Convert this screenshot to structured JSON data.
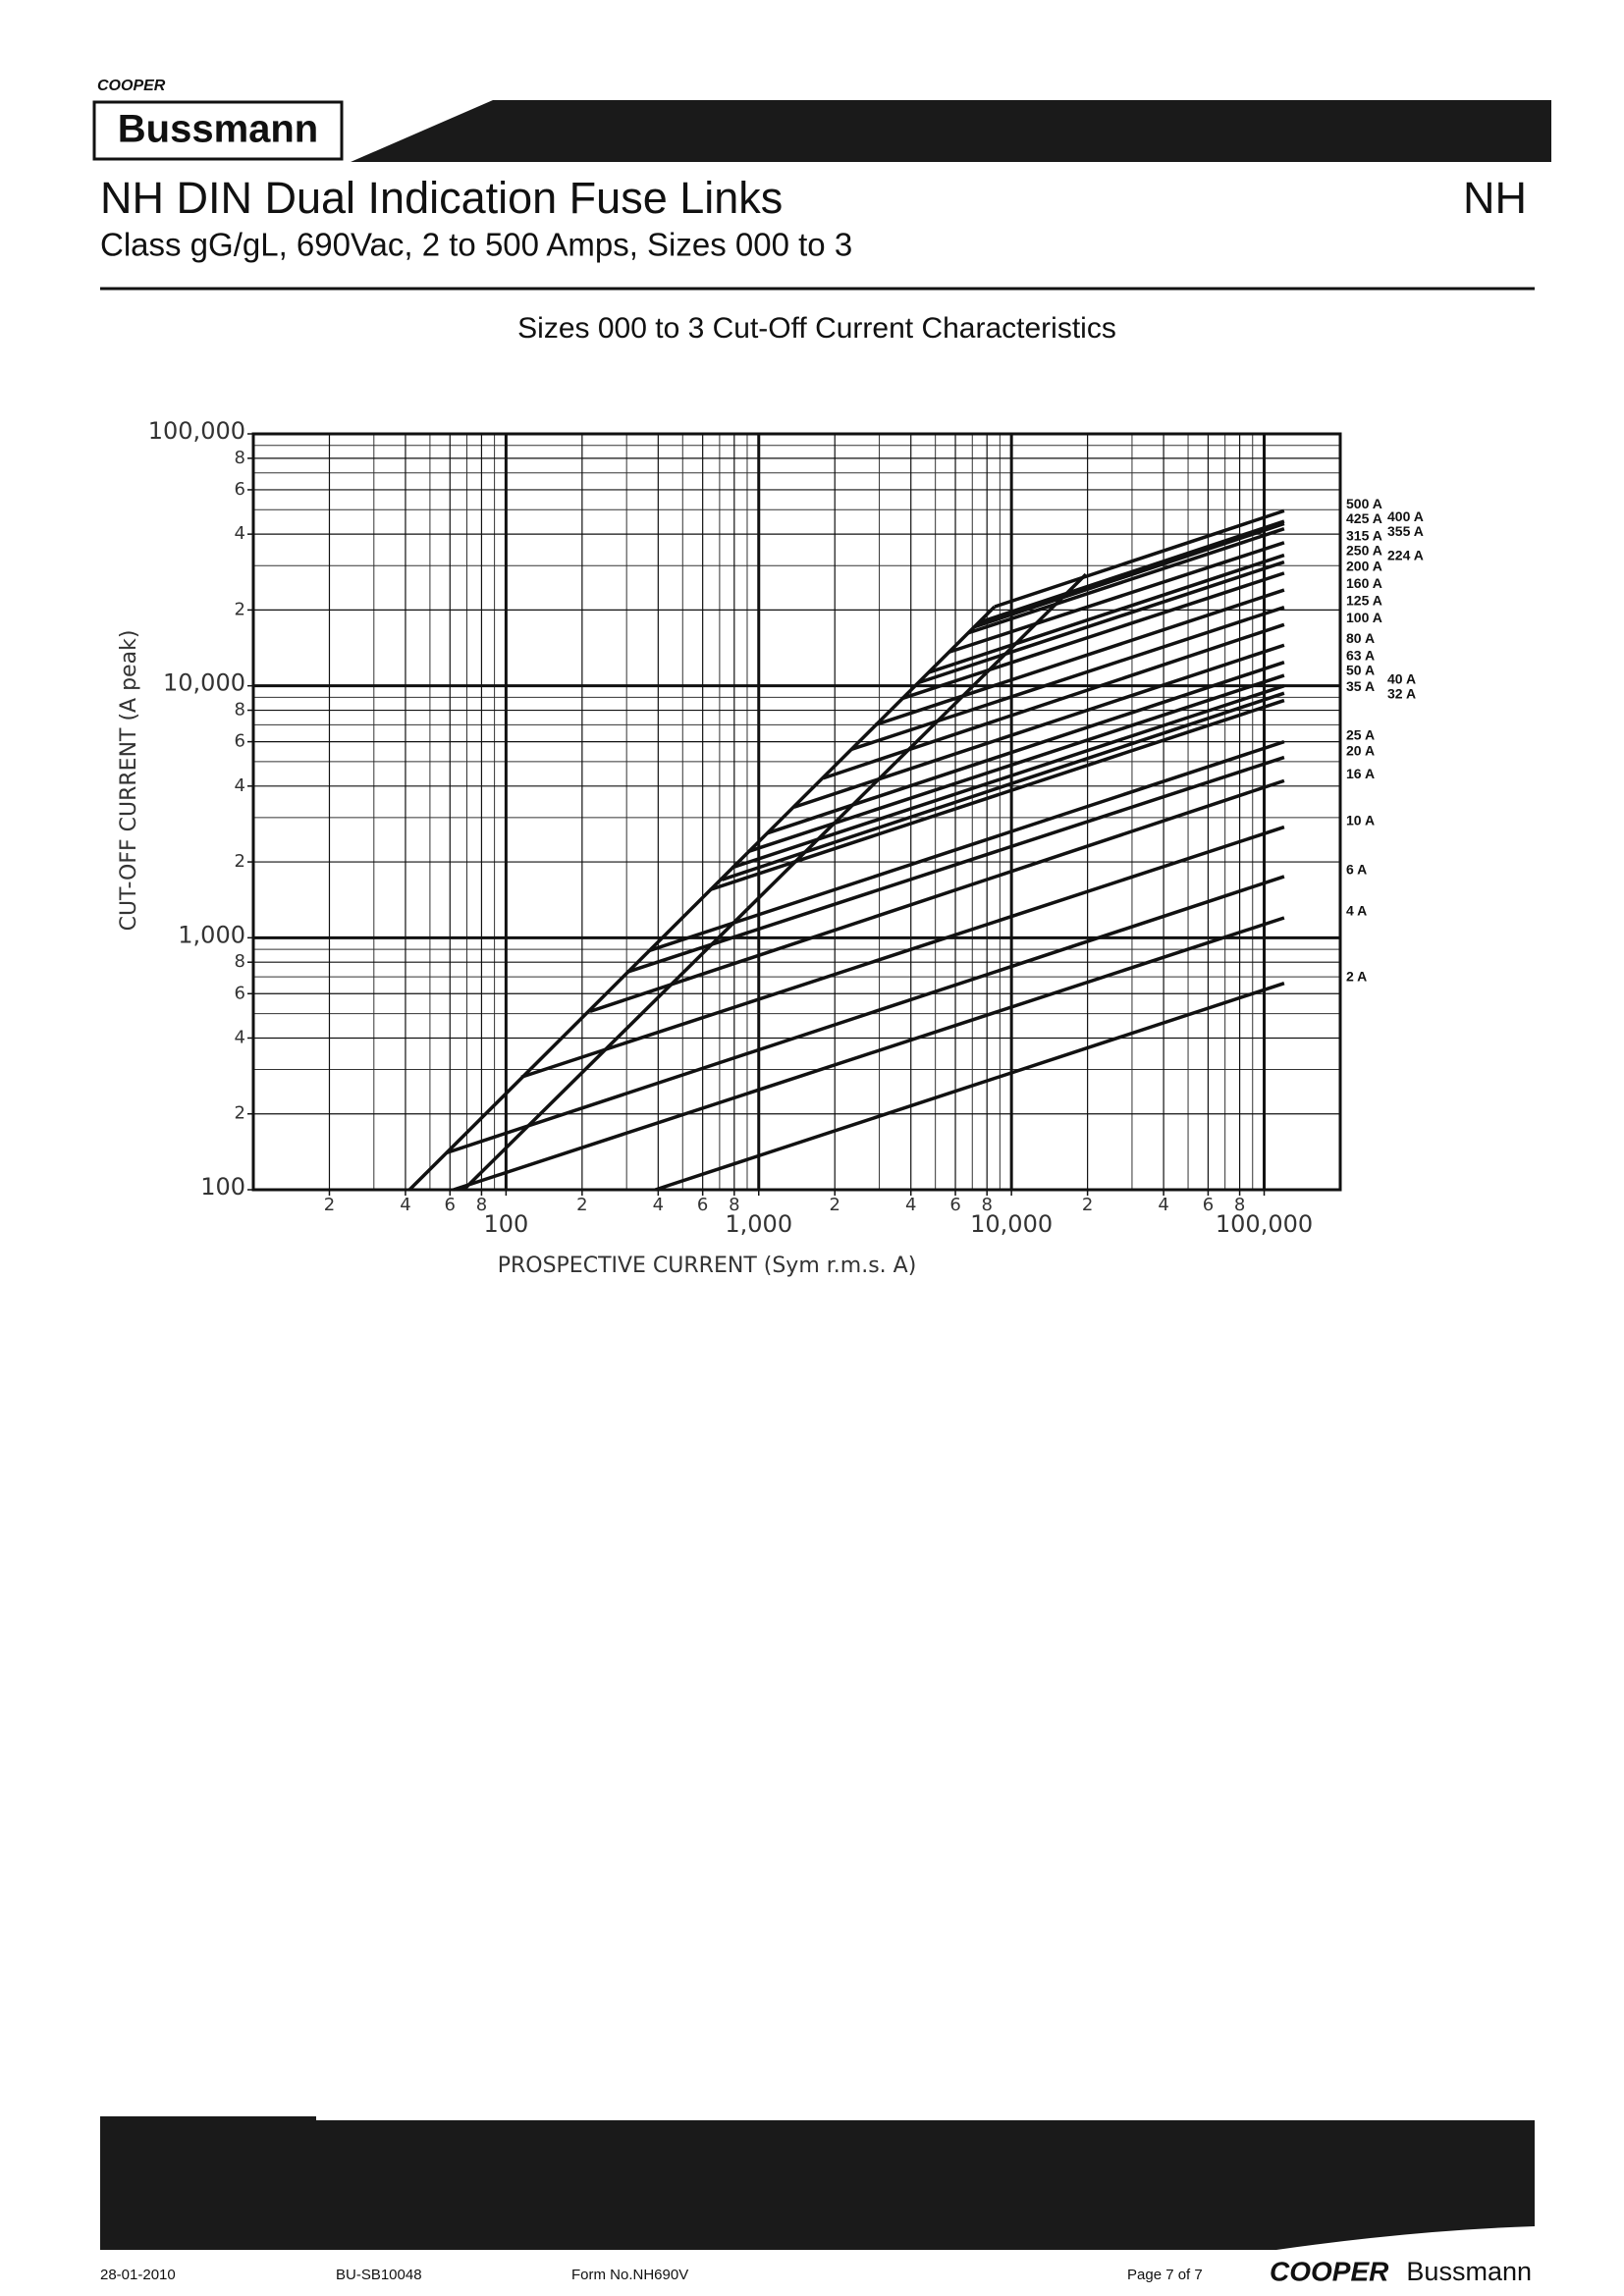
{
  "header": {
    "brand_small": "COOPER",
    "brand": "Bussmann",
    "title": "NH DIN Dual Indication Fuse Links",
    "subtitle": "Class gG/gL, 690Vac, 2 to 500 Amps, Sizes 000 to 3",
    "section": "NH"
  },
  "chart_data": {
    "type": "line",
    "title": "Sizes 000 to 3 Cut-Off Current Characteristics",
    "xlabel": "PROSPECTIVE CURRENT (Sym r.m.s. A)",
    "ylabel": "CUT-OFF CURRENT (A peak)",
    "xscale": "log",
    "yscale": "log",
    "grid": true,
    "color": "#111",
    "xlim": [
      10,
      200000
    ],
    "ylim": [
      100,
      100000
    ],
    "xticks": [
      {
        "value": 20,
        "label": "2"
      },
      {
        "value": 40,
        "label": "4"
      },
      {
        "value": 60,
        "label": "6"
      },
      {
        "value": 80,
        "label": "8"
      },
      100,
      {
        "value": 200,
        "label": "2"
      },
      {
        "value": 400,
        "label": "4"
      },
      {
        "value": 600,
        "label": "6"
      },
      {
        "value": 800,
        "label": "8"
      },
      {
        "value": 1000,
        "label": "1,000"
      },
      {
        "value": 2000,
        "label": "2"
      },
      {
        "value": 4000,
        "label": "4"
      },
      {
        "value": 6000,
        "label": "6"
      },
      {
        "value": 8000,
        "label": "8"
      },
      {
        "value": 10000,
        "label": "10,000"
      },
      {
        "value": 20000,
        "label": "2"
      },
      {
        "value": 40000,
        "label": "4"
      },
      {
        "value": 60000,
        "label": "6"
      },
      {
        "value": 80000,
        "label": "8"
      },
      {
        "value": 100000,
        "label": "100,000"
      }
    ],
    "yticks": [
      100,
      {
        "value": 200,
        "label": "2"
      },
      {
        "value": 400,
        "label": "4"
      },
      {
        "value": 600,
        "label": "6"
      },
      {
        "value": 800,
        "label": "8"
      },
      {
        "value": 1000,
        "label": "1,000"
      },
      {
        "value": 2000,
        "label": "2"
      },
      {
        "value": 4000,
        "label": "4"
      },
      {
        "value": 6000,
        "label": "6"
      },
      {
        "value": 8000,
        "label": "8"
      },
      {
        "value": 10000,
        "label": "10,000"
      },
      {
        "value": 20000,
        "label": "2"
      },
      {
        "value": 40000,
        "label": "4"
      },
      {
        "value": 60000,
        "label": "6"
      },
      {
        "value": 80000,
        "label": "8"
      },
      {
        "value": 100000,
        "label": "100,000"
      }
    ],
    "series": [
      {
        "name": "500 A",
        "x": [
          8570,
          120000
        ],
        "values": [
          20600,
          49500
        ]
      },
      {
        "name": "425 A",
        "x": [
          7390,
          120000
        ],
        "values": [
          17800,
          45000
        ]
      },
      {
        "name": "400 A",
        "x": [
          7100,
          120000
        ],
        "values": [
          17100,
          44000
        ]
      },
      {
        "name": "355 A",
        "x": [
          6730,
          120000
        ],
        "values": [
          16200,
          42000
        ]
      },
      {
        "name": "315 A",
        "x": [
          5650,
          120000
        ],
        "values": [
          13600,
          37000
        ]
      },
      {
        "name": "250 A",
        "x": [
          4700,
          120000
        ],
        "values": [
          11300,
          33000
        ]
      },
      {
        "name": "224 A",
        "x": [
          4300,
          120000
        ],
        "values": [
          10300,
          31000
        ]
      },
      {
        "name": "200 A",
        "x": [
          3680,
          120000
        ],
        "values": [
          8900,
          28000
        ]
      },
      {
        "name": "160 A",
        "x": [
          2890,
          120000
        ],
        "values": [
          7000,
          24000
        ]
      },
      {
        "name": "125 A",
        "x": [
          2330,
          120000
        ],
        "values": [
          5600,
          20500
        ]
      },
      {
        "name": "100 A",
        "x": [
          1800,
          120000
        ],
        "values": [
          4300,
          17500
        ]
      },
      {
        "name": "80 A",
        "x": [
          1380,
          120000
        ],
        "values": [
          3300,
          14500
        ]
      },
      {
        "name": "63 A",
        "x": [
          1080,
          120000
        ],
        "values": [
          2600,
          12400
        ]
      },
      {
        "name": "50 A",
        "x": [
          910,
          120000
        ],
        "values": [
          2200,
          11000
        ]
      },
      {
        "name": "40 A",
        "x": [
          785,
          120000
        ],
        "values": [
          1900,
          10000
        ]
      },
      {
        "name": "35 A",
        "x": [
          715,
          120000
        ],
        "values": [
          1700,
          9350
        ]
      },
      {
        "name": "32 A",
        "x": [
          640,
          120000
        ],
        "values": [
          1550,
          8750
        ]
      },
      {
        "name": "25 A",
        "x": [
          370,
          120000
        ],
        "values": [
          890,
          6000
        ]
      },
      {
        "name": "20 A",
        "x": [
          300,
          120000
        ],
        "values": [
          730,
          5200
        ]
      },
      {
        "name": "16 A",
        "x": [
          215,
          120000
        ],
        "values": [
          510,
          4200
        ]
      },
      {
        "name": "10 A",
        "x": [
          115,
          120000
        ],
        "values": [
          280,
          2750
        ]
      },
      {
        "name": "6 A",
        "x": [
          58,
          120000
        ],
        "values": [
          140,
          1750
        ]
      },
      {
        "name": "4 A",
        "x": [
          62,
          120000
        ],
        "values": [
          100,
          1200
        ]
      },
      {
        "name": "2 A",
        "x": [
          390,
          120000
        ],
        "values": [
          100,
          660
        ]
      },
      {
        "x": [
          41.5,
          8570
        ],
        "values": [
          100,
          20600
        ]
      },
      {
        "x": [
          68,
          19700
        ],
        "values": [
          100,
          27700
        ]
      }
    ]
  },
  "footer": {
    "date": "28-01-2010",
    "doc_code": "BU-SB10048",
    "form": "Form No.NH690V",
    "page": "Page 7 of 7",
    "brand_coop": "COOPER",
    "brand": "Bussmann"
  }
}
